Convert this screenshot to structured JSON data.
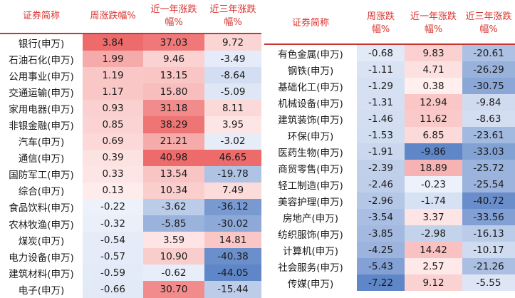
{
  "headers": {
    "name": "证券简称",
    "weekly": "周涨跌幅%",
    "weekly_r": "周涨跌幅%",
    "one_year": "近一年涨跌幅%",
    "three_year": "近三年涨跌幅%"
  },
  "colors": {
    "header_text": "#d8322e",
    "positive_max": "#ee6b6b",
    "negative_max": "#5f86c7"
  },
  "left_rows": [
    {
      "name": "银行(申万)",
      "w": "3.84",
      "y1": "37.03",
      "y3": "9.72"
    },
    {
      "name": "石油石化(申万)",
      "w": "1.99",
      "y1": "9.46",
      "y3": "-3.49"
    },
    {
      "name": "公用事业(申万)",
      "w": "1.19",
      "y1": "13.15",
      "y3": "-8.64"
    },
    {
      "name": "交通运输(申万)",
      "w": "1.17",
      "y1": "15.80",
      "y3": "-5.09"
    },
    {
      "name": "家用电器(申万)",
      "w": "0.93",
      "y1": "31.18",
      "y3": "8.11"
    },
    {
      "name": "非银金融(申万)",
      "w": "0.85",
      "y1": "38.29",
      "y3": "3.95"
    },
    {
      "name": "汽车(申万)",
      "w": "0.69",
      "y1": "21.21",
      "y3": "-3.02"
    },
    {
      "name": "通信(申万)",
      "w": "0.39",
      "y1": "40.98",
      "y3": "46.65"
    },
    {
      "name": "国防军工(申万)",
      "w": "0.33",
      "y1": "13.54",
      "y3": "-19.78"
    },
    {
      "name": "综合(申万)",
      "w": "0.13",
      "y1": "10.34",
      "y3": "7.49"
    },
    {
      "name": "食品饮料(申万)",
      "w": "-0.22",
      "y1": "-3.62",
      "y3": "-36.12"
    },
    {
      "name": "农林牧渔(申万)",
      "w": "-0.32",
      "y1": "-5.85",
      "y3": "-30.02"
    },
    {
      "name": "煤炭(申万)",
      "w": "-0.54",
      "y1": "3.59",
      "y3": "14.81"
    },
    {
      "name": "电力设备(申万)",
      "w": "-0.57",
      "y1": "10.90",
      "y3": "-40.38"
    },
    {
      "name": "建筑材料(申万)",
      "w": "-0.59",
      "y1": "-0.62",
      "y3": "-44.05"
    },
    {
      "name": "电子(申万)",
      "w": "-0.66",
      "y1": "30.70",
      "y3": "-15.44"
    }
  ],
  "right_rows": [
    {
      "name": "有色金属(申万)",
      "w": "-0.68",
      "y1": "9.83",
      "y3": "-20.61"
    },
    {
      "name": "钢铁(申万)",
      "w": "-1.11",
      "y1": "4.71",
      "y3": "-26.29"
    },
    {
      "name": "基础化工(申万)",
      "w": "-1.29",
      "y1": "0.38",
      "y3": "-30.75"
    },
    {
      "name": "机械设备(申万)",
      "w": "-1.31",
      "y1": "12.94",
      "y3": "-9.84"
    },
    {
      "name": "建筑装饰(申万)",
      "w": "-1.46",
      "y1": "11.62",
      "y3": "-8.63"
    },
    {
      "name": "环保(申万)",
      "w": "-1.53",
      "y1": "6.85",
      "y3": "-23.61"
    },
    {
      "name": "医药生物(申万)",
      "w": "-1.91",
      "y1": "-9.86",
      "y3": "-33.03"
    },
    {
      "name": "商贸零售(申万)",
      "w": "-2.39",
      "y1": "18.89",
      "y3": "-25.72"
    },
    {
      "name": "轻工制造(申万)",
      "w": "-2.46",
      "y1": "-0.23",
      "y3": "-25.54"
    },
    {
      "name": "美容护理(申万)",
      "w": "-2.96",
      "y1": "-1.74",
      "y3": "-40.72"
    },
    {
      "name": "房地产(申万)",
      "w": "-3.54",
      "y1": "3.37",
      "y3": "-33.56"
    },
    {
      "name": "纺织服饰(申万)",
      "w": "-3.85",
      "y1": "-2.98",
      "y3": "-16.13"
    },
    {
      "name": "计算机(申万)",
      "w": "-4.25",
      "y1": "14.42",
      "y3": "-10.17"
    },
    {
      "name": "社会服务(申万)",
      "w": "-5.43",
      "y1": "2.57",
      "y3": "-21.26"
    },
    {
      "name": "传媒(申万)",
      "w": "-7.22",
      "y1": "9.12",
      "y3": "-5.55"
    }
  ]
}
